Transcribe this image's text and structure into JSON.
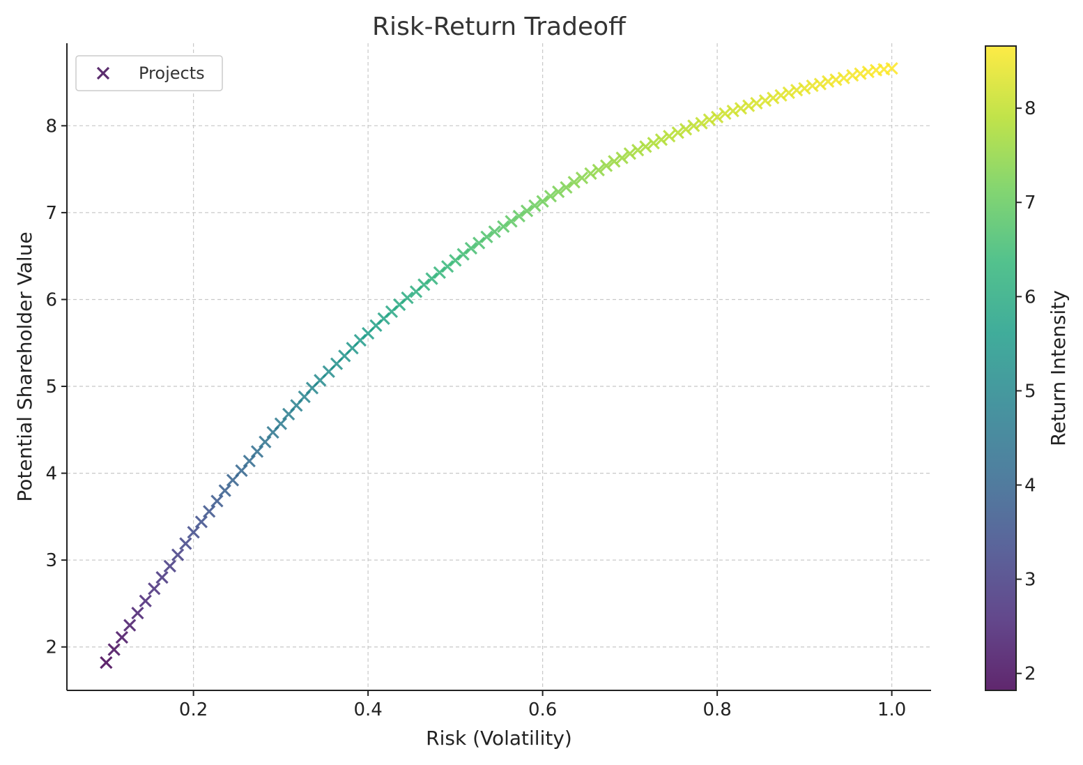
{
  "chart_data": {
    "type": "scatter",
    "title": "Risk-Return Tradeoff",
    "xlabel": "Risk (Volatility)",
    "ylabel": "Potential Shareholder Value",
    "xlim": [
      0.055,
      1.045
    ],
    "ylim": [
      1.5,
      8.95
    ],
    "xticks": [
      0.2,
      0.4,
      0.6,
      0.8,
      1.0
    ],
    "xtick_labels": [
      "0.2",
      "0.4",
      "0.6",
      "0.8",
      "1.0"
    ],
    "yticks": [
      2,
      3,
      4,
      5,
      6,
      7,
      8
    ],
    "ytick_labels": [
      "2",
      "3",
      "4",
      "5",
      "6",
      "7",
      "8"
    ],
    "grid": true,
    "marker": "x",
    "colormap": "viridis",
    "legend": {
      "placement": "top-left",
      "entries": [
        "Projects"
      ],
      "marker_color": "#5b2d6e"
    },
    "colorbar": {
      "label": "Return Intensity",
      "range": [
        1.82,
        8.66
      ],
      "ticks": [
        2,
        3,
        4,
        5,
        6,
        7,
        8
      ],
      "tick_labels": [
        "2",
        "3",
        "4",
        "5",
        "6",
        "7",
        "8"
      ]
    },
    "series": [
      {
        "x": [
          0.1,
          0.109,
          0.118,
          0.127,
          0.136,
          0.145,
          0.155,
          0.164,
          0.173,
          0.182,
          0.191,
          0.2,
          0.209,
          0.218,
          0.227,
          0.236,
          0.245,
          0.255,
          0.264,
          0.273,
          0.282,
          0.291,
          0.3,
          0.309,
          0.318,
          0.327,
          0.336,
          0.345,
          0.355,
          0.364,
          0.373,
          0.382,
          0.391,
          0.4,
          0.409,
          0.418,
          0.427,
          0.436,
          0.445,
          0.455,
          0.464,
          0.473,
          0.482,
          0.491,
          0.5,
          0.509,
          0.518,
          0.527,
          0.536,
          0.545,
          0.555,
          0.564,
          0.573,
          0.582,
          0.591,
          0.6,
          0.609,
          0.618,
          0.627,
          0.636,
          0.645,
          0.655,
          0.664,
          0.673,
          0.682,
          0.691,
          0.7,
          0.709,
          0.718,
          0.727,
          0.736,
          0.745,
          0.755,
          0.764,
          0.773,
          0.782,
          0.791,
          0.8,
          0.809,
          0.818,
          0.827,
          0.836,
          0.845,
          0.855,
          0.864,
          0.873,
          0.882,
          0.891,
          0.9,
          0.909,
          0.918,
          0.927,
          0.936,
          0.945,
          0.955,
          0.964,
          0.973,
          0.982,
          0.991,
          1.0
        ],
        "y": [
          1.82,
          1.97,
          2.11,
          2.25,
          2.39,
          2.53,
          2.67,
          2.8,
          2.93,
          3.06,
          3.19,
          3.32,
          3.44,
          3.56,
          3.68,
          3.8,
          3.92,
          4.03,
          4.14,
          4.25,
          4.36,
          4.47,
          4.57,
          4.68,
          4.78,
          4.88,
          4.98,
          5.07,
          5.17,
          5.26,
          5.35,
          5.44,
          5.53,
          5.61,
          5.7,
          5.78,
          5.86,
          5.94,
          6.02,
          6.09,
          6.17,
          6.24,
          6.31,
          6.38,
          6.45,
          6.52,
          6.59,
          6.65,
          6.72,
          6.78,
          6.84,
          6.9,
          6.96,
          7.02,
          7.08,
          7.13,
          7.19,
          7.24,
          7.29,
          7.35,
          7.4,
          7.45,
          7.49,
          7.54,
          7.59,
          7.63,
          7.68,
          7.72,
          7.76,
          7.8,
          7.84,
          7.88,
          7.92,
          7.96,
          8.0,
          8.03,
          8.07,
          8.1,
          8.14,
          8.17,
          8.2,
          8.23,
          8.26,
          8.29,
          8.32,
          8.35,
          8.38,
          8.41,
          8.43,
          8.46,
          8.48,
          8.51,
          8.53,
          8.55,
          8.58,
          8.6,
          8.62,
          8.64,
          8.65,
          8.66
        ]
      }
    ]
  }
}
